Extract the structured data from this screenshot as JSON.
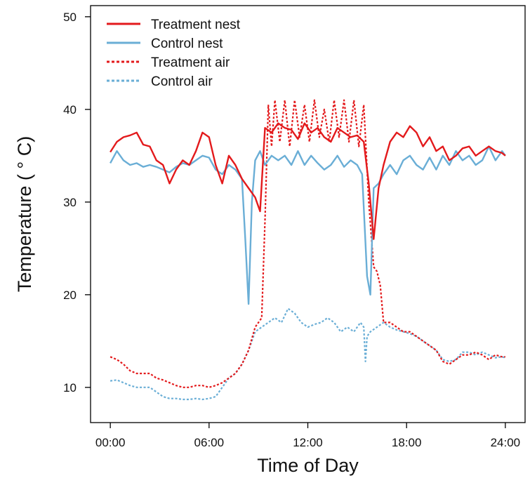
{
  "chart_data": {
    "type": "line",
    "xlabel": "Time of Day",
    "ylabel": "Temperature ( ° C)",
    "xlim": [
      -1.2,
      25.2
    ],
    "ylim": [
      6.2,
      51.2
    ],
    "x_ticks": [
      0,
      6,
      12,
      18,
      24
    ],
    "x_tick_labels": [
      "00:00",
      "06:00",
      "12:00",
      "18:00",
      "24:00"
    ],
    "y_ticks": [
      10,
      20,
      30,
      40,
      50
    ],
    "y_tick_labels": [
      "10",
      "20",
      "30",
      "40",
      "50"
    ],
    "grid": false,
    "legend_position": "top-left",
    "series": [
      {
        "name": "Treatment nest",
        "color": "#e31a1c",
        "style": "solid",
        "x": [
          0,
          0.4,
          0.8,
          1.2,
          1.6,
          2.0,
          2.4,
          2.8,
          3.2,
          3.6,
          4.0,
          4.4,
          4.8,
          5.2,
          5.6,
          6.0,
          6.4,
          6.8,
          7.2,
          7.6,
          8.0,
          8.4,
          8.8,
          9.1,
          9.4,
          9.8,
          10.2,
          10.6,
          11.0,
          11.4,
          11.8,
          12.2,
          12.6,
          13.0,
          13.4,
          13.8,
          14.2,
          14.6,
          15.0,
          15.4,
          15.7,
          16.0,
          16.3,
          16.6,
          17.0,
          17.4,
          17.8,
          18.2,
          18.6,
          19.0,
          19.4,
          19.8,
          20.2,
          20.6,
          21.0,
          21.4,
          21.8,
          22.2,
          22.6,
          23.0,
          23.4,
          23.8,
          24.0
        ],
        "y": [
          35.4,
          36.5,
          37.0,
          37.2,
          37.5,
          36.2,
          36.0,
          34.5,
          34.0,
          32.0,
          33.5,
          34.5,
          34.0,
          35.5,
          37.5,
          37.0,
          34.0,
          32.0,
          35.0,
          34.0,
          32.5,
          31.5,
          30.5,
          29.0,
          38.0,
          37.5,
          38.5,
          38.0,
          37.8,
          36.8,
          38.5,
          37.5,
          38.0,
          37.0,
          36.5,
          38.0,
          37.5,
          37.0,
          37.2,
          36.5,
          32.0,
          26.0,
          31.5,
          34.0,
          36.5,
          37.5,
          37.0,
          38.2,
          37.5,
          36.0,
          37.0,
          35.5,
          36.0,
          34.5,
          35.0,
          35.8,
          36.0,
          35.0,
          35.5,
          36.0,
          35.5,
          35.3,
          35.0
        ]
      },
      {
        "name": "Control nest",
        "color": "#6aaed6",
        "style": "solid",
        "x": [
          0,
          0.4,
          0.8,
          1.2,
          1.6,
          2.0,
          2.4,
          2.8,
          3.2,
          3.6,
          4.0,
          4.4,
          4.8,
          5.2,
          5.6,
          6.0,
          6.4,
          6.8,
          7.2,
          7.6,
          8.0,
          8.2,
          8.4,
          8.6,
          8.8,
          9.1,
          9.4,
          9.8,
          10.2,
          10.6,
          11.0,
          11.4,
          11.8,
          12.2,
          12.6,
          13.0,
          13.4,
          13.8,
          14.2,
          14.6,
          15.0,
          15.3,
          15.6,
          15.8,
          16.0,
          16.3,
          16.6,
          17.0,
          17.4,
          17.8,
          18.2,
          18.6,
          19.0,
          19.4,
          19.8,
          20.2,
          20.6,
          21.0,
          21.4,
          21.8,
          22.2,
          22.6,
          23.0,
          23.4,
          23.8,
          24.0
        ],
        "y": [
          34.2,
          35.5,
          34.5,
          34.0,
          34.2,
          33.8,
          34.0,
          33.8,
          33.5,
          33.2,
          33.8,
          34.2,
          34.0,
          34.5,
          35.0,
          34.8,
          33.5,
          33.0,
          34.0,
          33.5,
          32.5,
          26.0,
          19.0,
          30.0,
          34.5,
          35.5,
          34.0,
          35.0,
          34.5,
          35.0,
          34.0,
          35.5,
          34.0,
          35.0,
          34.2,
          33.5,
          34.0,
          35.0,
          33.8,
          34.5,
          34.0,
          33.0,
          22.0,
          20.0,
          31.5,
          32.0,
          33.0,
          34.0,
          33.0,
          34.5,
          35.0,
          34.0,
          33.5,
          34.8,
          33.5,
          35.0,
          34.0,
          35.5,
          34.5,
          35.0,
          34.0,
          34.5,
          36.0,
          34.5,
          35.5,
          35.0
        ]
      },
      {
        "name": "Treatment air",
        "color": "#e31a1c",
        "style": "dotted",
        "x": [
          0,
          0.4,
          0.8,
          1.2,
          1.6,
          2.0,
          2.4,
          2.8,
          3.2,
          3.6,
          4.0,
          4.4,
          4.8,
          5.2,
          5.6,
          6.0,
          6.4,
          6.8,
          7.2,
          7.6,
          8.0,
          8.4,
          8.8,
          9.0,
          9.2,
          9.4,
          9.6,
          9.8,
          10.0,
          10.3,
          10.6,
          10.9,
          11.2,
          11.5,
          11.8,
          12.1,
          12.4,
          12.7,
          13.0,
          13.3,
          13.6,
          13.9,
          14.2,
          14.5,
          14.8,
          15.1,
          15.4,
          15.7,
          16.0,
          16.2,
          16.4,
          16.6,
          17.0,
          17.4,
          17.8,
          18.2,
          18.6,
          19.0,
          19.4,
          19.8,
          20.2,
          20.6,
          21.0,
          21.4,
          21.8,
          22.2,
          22.6,
          23.0,
          23.4,
          23.8,
          24.0
        ],
        "y": [
          13.3,
          13.0,
          12.5,
          11.8,
          11.5,
          11.5,
          11.5,
          11.0,
          10.8,
          10.5,
          10.2,
          10.0,
          10.0,
          10.2,
          10.2,
          10.0,
          10.2,
          10.5,
          11.0,
          11.5,
          12.5,
          14.0,
          16.5,
          17.0,
          17.5,
          28.0,
          40.5,
          36.0,
          41.0,
          36.5,
          41.0,
          36.0,
          41.0,
          37.0,
          40.5,
          36.5,
          41.0,
          37.0,
          40.0,
          36.5,
          41.0,
          37.0,
          41.0,
          36.5,
          41.0,
          36.0,
          40.5,
          30.0,
          23.0,
          22.5,
          21.0,
          17.0,
          17.0,
          16.5,
          16.0,
          16.0,
          15.5,
          15.0,
          14.5,
          14.0,
          12.8,
          12.5,
          13.0,
          13.5,
          13.5,
          13.8,
          13.5,
          13.0,
          13.5,
          13.3,
          13.3
        ]
      },
      {
        "name": "Control air",
        "color": "#6aaed6",
        "style": "dotted",
        "x": [
          0,
          0.4,
          0.8,
          1.2,
          1.6,
          2.0,
          2.4,
          2.8,
          3.2,
          3.6,
          4.0,
          4.4,
          4.8,
          5.2,
          5.6,
          6.0,
          6.4,
          6.8,
          7.2,
          7.6,
          8.0,
          8.4,
          8.8,
          9.2,
          9.6,
          10.0,
          10.4,
          10.8,
          11.2,
          11.6,
          12.0,
          12.4,
          12.8,
          13.2,
          13.6,
          14.0,
          14.4,
          14.8,
          15.2,
          15.4,
          15.5,
          15.6,
          15.8,
          16.2,
          16.6,
          17.0,
          17.4,
          17.8,
          18.2,
          18.6,
          19.0,
          19.4,
          19.8,
          20.2,
          20.6,
          21.0,
          21.4,
          21.8,
          22.2,
          22.6,
          23.0,
          23.4,
          23.8,
          24.0
        ],
        "y": [
          10.7,
          10.8,
          10.5,
          10.2,
          10.0,
          10.0,
          10.0,
          9.5,
          9.0,
          8.8,
          8.8,
          8.7,
          8.7,
          8.8,
          8.7,
          8.8,
          9.0,
          10.0,
          11.0,
          11.5,
          12.5,
          14.0,
          16.0,
          16.5,
          17.0,
          17.5,
          17.0,
          18.5,
          18.0,
          17.0,
          16.5,
          16.8,
          17.0,
          17.5,
          17.0,
          16.0,
          16.5,
          16.0,
          17.0,
          16.5,
          12.8,
          15.5,
          16.0,
          16.5,
          17.0,
          16.5,
          16.2,
          16.0,
          15.8,
          15.5,
          15.0,
          14.5,
          14.0,
          13.0,
          12.8,
          13.0,
          13.8,
          13.8,
          13.5,
          13.8,
          13.5,
          13.2,
          13.3,
          13.2
        ]
      }
    ]
  }
}
